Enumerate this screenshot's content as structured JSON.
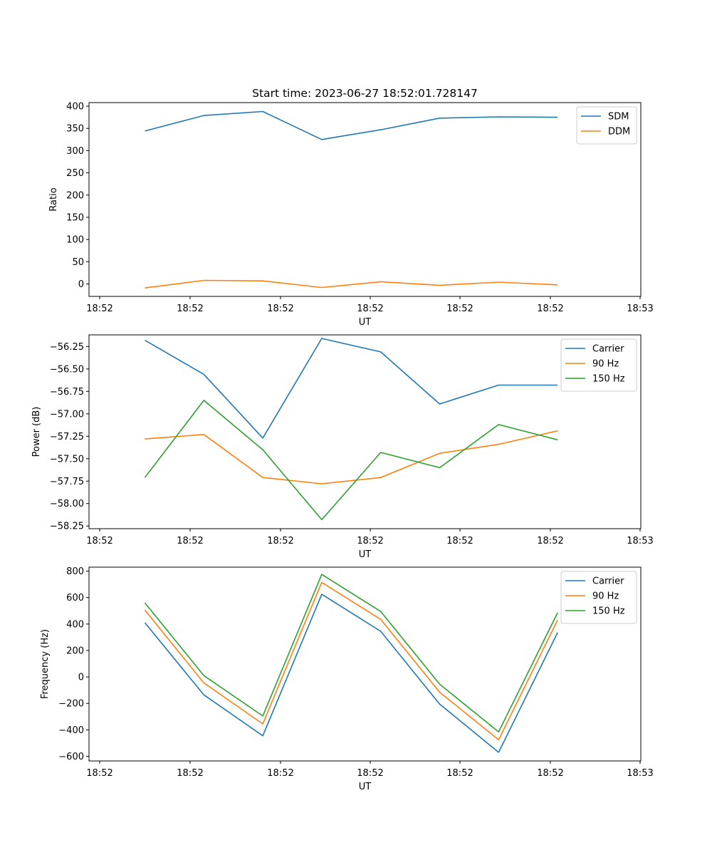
{
  "title": "Start time: 2023-06-27 18:52:01.728147",
  "colors": {
    "blue": "#1f77b4",
    "orange": "#ff7f0e",
    "green": "#2ca02c"
  },
  "chart_data": [
    {
      "type": "line",
      "xlabel": "UT",
      "ylabel": "Ratio",
      "x_tick_labels": [
        "18:52",
        "18:52",
        "18:52",
        "18:52",
        "18:52",
        "18:52",
        "18:52",
        "18:53"
      ],
      "y_ticks": [
        0,
        50,
        100,
        150,
        200,
        250,
        300,
        350,
        400
      ],
      "ylim": [
        -28,
        408
      ],
      "legend_position": "top-right",
      "series": [
        {
          "name": "SDM",
          "color": "#1f77b4",
          "values": [
            344,
            379,
            388,
            325,
            347,
            373,
            376,
            375
          ]
        },
        {
          "name": "DDM",
          "color": "#ff7f0e",
          "values": [
            -9,
            8,
            7,
            -8,
            5,
            -3,
            4,
            -2
          ]
        }
      ]
    },
    {
      "type": "line",
      "xlabel": "UT",
      "ylabel": "Power (dB)",
      "x_tick_labels": [
        "18:52",
        "18:52",
        "18:52",
        "18:52",
        "18:52",
        "18:52",
        "18:52",
        "18:53"
      ],
      "y_ticks": [
        -58.25,
        -58.0,
        -57.75,
        -57.5,
        -57.25,
        -57.0,
        -56.75,
        -56.5,
        -56.25
      ],
      "y_tick_labels": [
        "−58.25",
        "−58.00",
        "−57.75",
        "−57.50",
        "−57.25",
        "−57.00",
        "−56.75",
        "−56.50",
        "−56.25"
      ],
      "ylim": [
        -58.28,
        -56.12
      ],
      "legend_position": "top-right",
      "series": [
        {
          "name": "Carrier",
          "color": "#1f77b4",
          "values": [
            -56.18,
            -56.56,
            -57.27,
            -56.16,
            -56.31,
            -56.89,
            -56.68,
            -56.68
          ]
        },
        {
          "name": "90 Hz",
          "color": "#ff7f0e",
          "values": [
            -57.28,
            -57.23,
            -57.71,
            -57.78,
            -57.71,
            -57.44,
            -57.34,
            -57.19
          ]
        },
        {
          "name": "150 Hz",
          "color": "#2ca02c",
          "values": [
            -57.71,
            -56.85,
            -57.4,
            -58.18,
            -57.43,
            -57.6,
            -57.12,
            -57.29
          ]
        }
      ]
    },
    {
      "type": "line",
      "xlabel": "UT",
      "ylabel": "Frequency (Hz)",
      "x_tick_labels": [
        "18:52",
        "18:52",
        "18:52",
        "18:52",
        "18:52",
        "18:52",
        "18:52",
        "18:53"
      ],
      "y_ticks": [
        -600,
        -400,
        -200,
        0,
        200,
        400,
        600,
        800
      ],
      "y_tick_labels": [
        "−600",
        "−400",
        "−200",
        "0",
        "200",
        "400",
        "600",
        "800"
      ],
      "ylim": [
        -635,
        830
      ],
      "legend_position": "top-right",
      "series": [
        {
          "name": "Carrier",
          "color": "#1f77b4",
          "values": [
            410,
            -135,
            -445,
            625,
            345,
            -205,
            -570,
            335
          ]
        },
        {
          "name": "90 Hz",
          "color": "#ff7f0e",
          "values": [
            505,
            -45,
            -355,
            715,
            435,
            -115,
            -475,
            430
          ]
        },
        {
          "name": "150 Hz",
          "color": "#2ca02c",
          "values": [
            560,
            10,
            -295,
            775,
            495,
            -55,
            -415,
            485
          ]
        }
      ]
    }
  ]
}
